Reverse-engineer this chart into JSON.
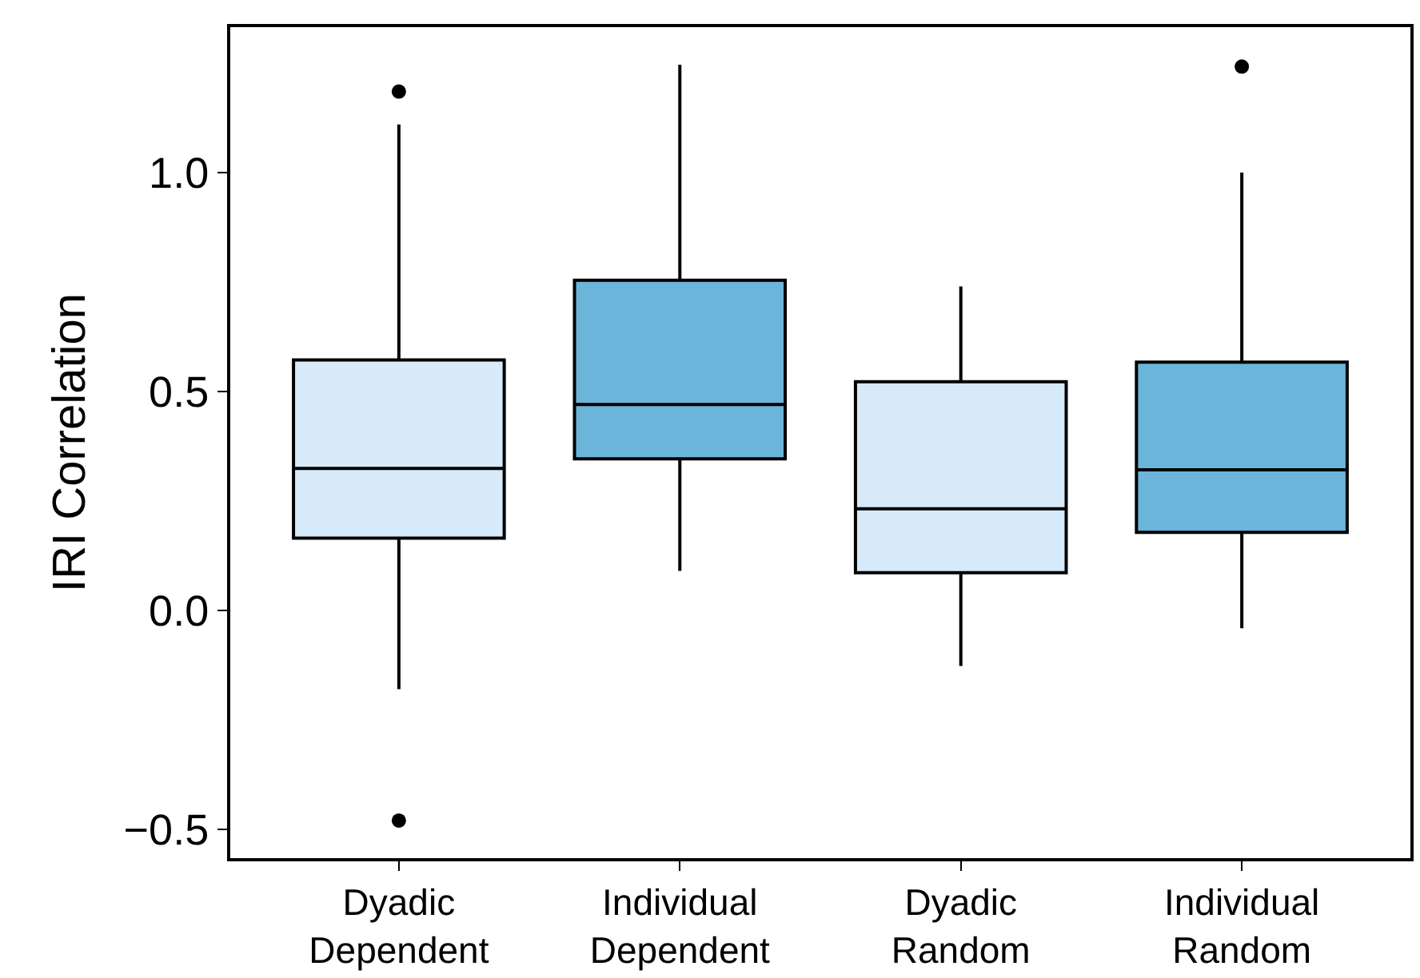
{
  "chart_data": {
    "type": "box",
    "ylabel": "IRI Correlation",
    "categories": [
      "Dyadic\nDependent",
      "Individual\nDependent",
      "Dyadic\nRandom",
      "Individual\nRandom"
    ],
    "colors": [
      "#d6eaf9",
      "#6bb5da",
      "#d6eaf9",
      "#6bb5da"
    ],
    "boxes": [
      {
        "low": -0.18,
        "q1": 0.165,
        "median": 0.324,
        "q3": 0.572,
        "high": 1.11,
        "outliers": [
          1.185,
          -0.48
        ]
      },
      {
        "low": 0.09,
        "q1": 0.346,
        "median": 0.47,
        "q3": 0.754,
        "high": 1.246
      },
      {
        "low": -0.127,
        "q1": 0.086,
        "median": 0.232,
        "q3": 0.522,
        "high": 0.74
      },
      {
        "low": -0.041,
        "q1": 0.178,
        "median": 0.321,
        "q3": 0.567,
        "high": 1.0,
        "outliers": [
          1.242
        ]
      }
    ],
    "ylim": [
      -0.566,
      1.332
    ],
    "yticks": [
      {
        "value": -0.5,
        "label": "−0.5"
      },
      {
        "value": 0,
        "label": "0.0"
      },
      {
        "value": 0.5,
        "label": "0.5"
      },
      {
        "value": 1,
        "label": "1.0"
      }
    ]
  }
}
